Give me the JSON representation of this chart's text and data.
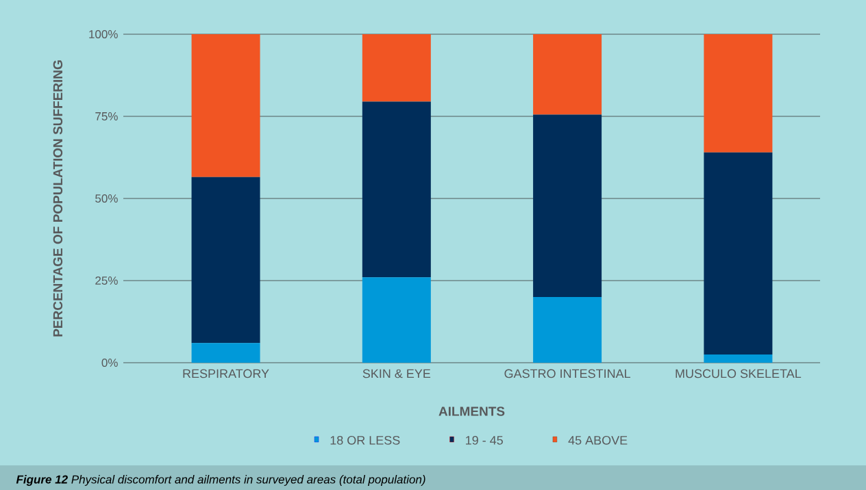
{
  "chart_data": {
    "type": "bar",
    "stacked": true,
    "xlabel": "AILMENTS",
    "ylabel": "PERCENTAGE OF POPULATION SUFFERING",
    "categories": [
      "RESPIRATORY",
      "SKIN & EYE",
      "GASTRO INTESTINAL",
      "MUSCULO SKELETAL"
    ],
    "series": [
      {
        "name": "18 OR LESS",
        "color": "#0099d9",
        "values": [
          6,
          26,
          20,
          2.5
        ]
      },
      {
        "name": "19 - 45",
        "color": "#002d5a",
        "values": [
          50.5,
          53.5,
          55.5,
          61.5
        ]
      },
      {
        "name": "45 ABOVE",
        "color": "#f15523",
        "values": [
          43.5,
          20.5,
          24.5,
          36
        ]
      }
    ],
    "ylim": [
      0,
      100
    ],
    "yticks": [
      {
        "value": 0,
        "label": "0%"
      },
      {
        "value": 25,
        "label": "25%"
      },
      {
        "value": 50,
        "label": "50%"
      },
      {
        "value": 75,
        "label": "75%"
      },
      {
        "value": 100,
        "label": "100%"
      }
    ],
    "grid": "y",
    "legend": "bottom",
    "annotations": [
      "**Figure 12** Physical discomfort and ailments in surveyed areas (total population)"
    ]
  }
}
